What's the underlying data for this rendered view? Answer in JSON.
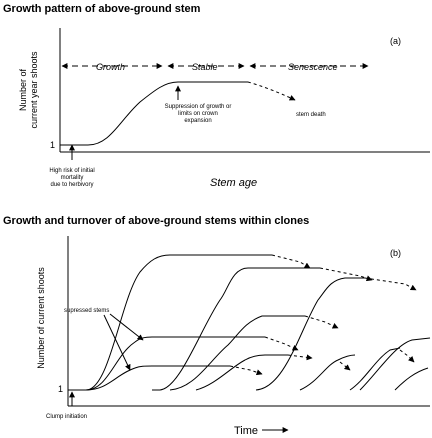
{
  "panel_a": {
    "title": "Growth pattern of above-ground stem",
    "tag": "(a)",
    "ylabel_line1": "Number of",
    "ylabel_line2": "current year shoots",
    "y_tick": "1",
    "xlabel": "Stem age",
    "phases": {
      "growth": "Growth",
      "stable": "Stable",
      "senescence": "Senescence"
    },
    "annot_mortality": [
      "High risk of initial",
      "mortality",
      "due to herbivory"
    ],
    "annot_suppression": [
      "Suppression of growth or",
      "limits on crown",
      "expansion"
    ],
    "annot_death": "stem death"
  },
  "panel_b": {
    "title": "Growth and turnover of above-ground stems within clones",
    "tag": "(b)",
    "ylabel": "Number of current shoots",
    "y_tick": "1",
    "xlabel": "Time",
    "annot_suppressed": "supressed stems",
    "annot_clump": "Clump initiation"
  }
}
